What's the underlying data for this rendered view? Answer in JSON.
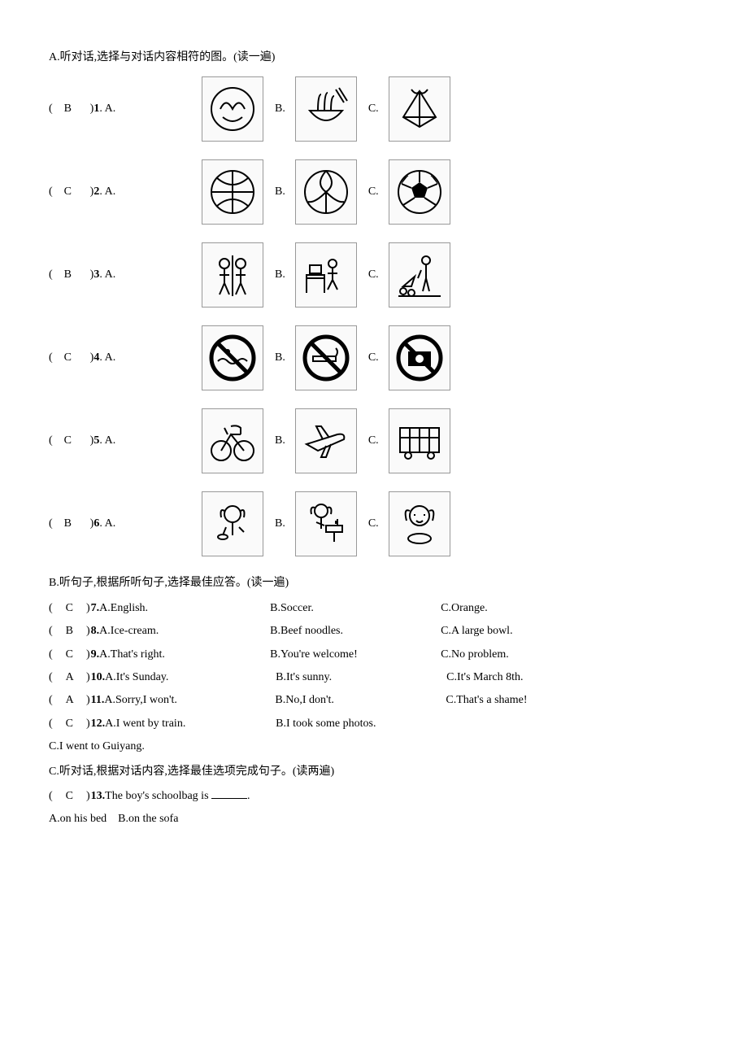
{
  "sectionA": {
    "title": "A.听对话,选择与对话内容相符的图。(读一遍)",
    "rows": [
      {
        "answer": "B",
        "num": "1",
        "icons": [
          "fruit-plate",
          "noodles-bowl",
          "zongzi"
        ]
      },
      {
        "answer": "C",
        "num": "2",
        "icons": [
          "basketball",
          "volleyball",
          "soccer-ball"
        ]
      },
      {
        "answer": "B",
        "num": "3",
        "icons": [
          "kids-playing",
          "person-desk",
          "water-flowers"
        ]
      },
      {
        "answer": "C",
        "num": "4",
        "icons": [
          "no-swimming",
          "no-smoking",
          "no-photo"
        ]
      },
      {
        "answer": "C",
        "num": "5",
        "icons": [
          "bicycle",
          "airplane",
          "bus"
        ]
      },
      {
        "answer": "B",
        "num": "6",
        "icons": [
          "girl-eating",
          "girl-washing",
          "girl-face"
        ]
      }
    ]
  },
  "sectionB": {
    "title": "B.听句子,根据所听句子,选择最佳应答。(读一遍)",
    "rows": [
      {
        "answer": "C",
        "num": "7",
        "a": "A.English.",
        "b": "B.Soccer.",
        "c": "C.Orange."
      },
      {
        "answer": "B",
        "num": "8",
        "a": "A.Ice-cream.",
        "b": "B.Beef noodles.",
        "c": "C.A large bowl."
      },
      {
        "answer": "C",
        "num": "9",
        "a": "A.That's right.",
        "b": "B.You're welcome!",
        "c": "C.No problem."
      },
      {
        "answer": "A",
        "num": "10",
        "a": "A.It's Sunday.",
        "b": "B.It's sunny.",
        "c": "C.It's March 8th."
      },
      {
        "answer": "A",
        "num": "11",
        "a": "A.Sorry,I won't.",
        "b": "B.No,I don't.",
        "c": "C.That's a shame!"
      },
      {
        "answer": "C",
        "num": "12",
        "a": "A.I went by train.",
        "b": "B.I took some photos.",
        "c_line2": "C.I went to Guiyang."
      }
    ]
  },
  "sectionC": {
    "title": "C.听对话,根据对话内容,选择最佳选项完成句子。(读两遍)",
    "rows": [
      {
        "answer": "C",
        "num": "13",
        "stem": "The boy's schoolbag is",
        "blank": true,
        "tail": ".",
        "a": "A.on his bed",
        "b": "B.on the sofa"
      }
    ]
  },
  "letters": {
    "A": "A.",
    "B": "B.",
    "C": "C."
  }
}
